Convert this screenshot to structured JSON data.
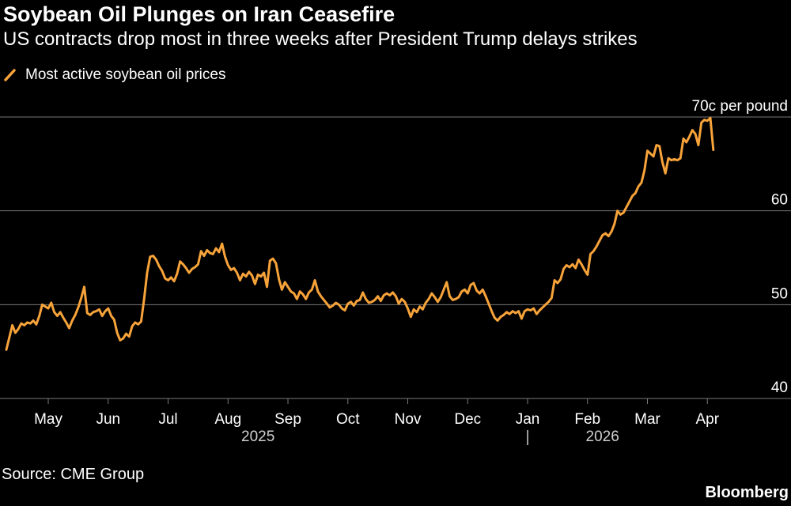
{
  "header": {
    "title": "Soybean Oil Plunges on Iran Ceasefire",
    "subtitle": "US contracts drop most in three weeks after President Trump delays strikes"
  },
  "legend": {
    "label": "Most active soybean oil prices"
  },
  "footer": {
    "source": "Source: CME Group",
    "brand": "Bloomberg"
  },
  "colors": {
    "background": "#000000",
    "line": "#f7a33a",
    "grid": "#7a7a7a",
    "text": "#ffffff",
    "year_text": "#cfcfcf"
  },
  "chart_data": {
    "type": "line",
    "title": "Soybean Oil Plunges on Iran Ceasefire",
    "series": [
      {
        "name": "Most active soybean oil prices",
        "unit": "cents per pound"
      }
    ],
    "ylim": [
      40,
      70
    ],
    "y_ticks": [
      {
        "value": 70,
        "label": "70c per pound"
      },
      {
        "value": 60,
        "label": "60"
      },
      {
        "value": 50,
        "label": "50"
      },
      {
        "value": 40,
        "label": "40"
      }
    ],
    "x_range": [
      0,
      12.7
    ],
    "month_ticks": [
      {
        "pos": 0.7,
        "label": "May"
      },
      {
        "pos": 1.7,
        "label": "Jun"
      },
      {
        "pos": 2.7,
        "label": "Jul"
      },
      {
        "pos": 3.7,
        "label": "Aug"
      },
      {
        "pos": 4.7,
        "label": "Sep"
      },
      {
        "pos": 5.7,
        "label": "Oct"
      },
      {
        "pos": 6.7,
        "label": "Nov"
      },
      {
        "pos": 7.7,
        "label": "Dec"
      },
      {
        "pos": 8.7,
        "label": "Jan"
      },
      {
        "pos": 9.7,
        "label": "Feb"
      },
      {
        "pos": 10.7,
        "label": "Mar"
      },
      {
        "pos": 11.7,
        "label": "Apr"
      }
    ],
    "year_labels": [
      {
        "pos": 4.2,
        "label": "2025"
      },
      {
        "pos": 9.95,
        "label": "2026"
      }
    ],
    "year_divider_pos": 8.7,
    "points": [
      [
        0.0,
        45.2
      ],
      [
        0.05,
        46.5
      ],
      [
        0.1,
        47.8
      ],
      [
        0.15,
        47.0
      ],
      [
        0.2,
        47.4
      ],
      [
        0.25,
        48.0
      ],
      [
        0.3,
        47.8
      ],
      [
        0.35,
        48.1
      ],
      [
        0.4,
        48.0
      ],
      [
        0.45,
        48.3
      ],
      [
        0.5,
        47.9
      ],
      [
        0.55,
        48.8
      ],
      [
        0.6,
        50.0
      ],
      [
        0.65,
        49.8
      ],
      [
        0.7,
        49.6
      ],
      [
        0.75,
        50.2
      ],
      [
        0.8,
        49.2
      ],
      [
        0.85,
        48.8
      ],
      [
        0.9,
        49.2
      ],
      [
        0.95,
        48.6
      ],
      [
        1.0,
        48.1
      ],
      [
        1.05,
        47.5
      ],
      [
        1.1,
        48.3
      ],
      [
        1.15,
        48.9
      ],
      [
        1.2,
        49.7
      ],
      [
        1.25,
        50.7
      ],
      [
        1.3,
        51.9
      ],
      [
        1.35,
        49.1
      ],
      [
        1.4,
        48.9
      ],
      [
        1.45,
        49.2
      ],
      [
        1.5,
        49.3
      ],
      [
        1.55,
        49.5
      ],
      [
        1.6,
        48.8
      ],
      [
        1.65,
        49.3
      ],
      [
        1.7,
        49.6
      ],
      [
        1.75,
        48.8
      ],
      [
        1.8,
        48.4
      ],
      [
        1.85,
        47.0
      ],
      [
        1.9,
        46.2
      ],
      [
        1.95,
        46.4
      ],
      [
        2.0,
        46.9
      ],
      [
        2.05,
        46.6
      ],
      [
        2.1,
        47.7
      ],
      [
        2.15,
        48.1
      ],
      [
        2.2,
        47.9
      ],
      [
        2.25,
        48.2
      ],
      [
        2.3,
        50.6
      ],
      [
        2.35,
        53.4
      ],
      [
        2.4,
        55.1
      ],
      [
        2.45,
        55.2
      ],
      [
        2.5,
        54.8
      ],
      [
        2.55,
        54.1
      ],
      [
        2.6,
        53.6
      ],
      [
        2.65,
        52.8
      ],
      [
        2.7,
        52.6
      ],
      [
        2.75,
        52.9
      ],
      [
        2.8,
        52.5
      ],
      [
        2.85,
        53.3
      ],
      [
        2.9,
        54.6
      ],
      [
        2.95,
        54.3
      ],
      [
        3.0,
        53.9
      ],
      [
        3.05,
        53.4
      ],
      [
        3.1,
        53.8
      ],
      [
        3.15,
        54.0
      ],
      [
        3.2,
        54.3
      ],
      [
        3.25,
        55.7
      ],
      [
        3.3,
        55.2
      ],
      [
        3.35,
        55.8
      ],
      [
        3.4,
        55.5
      ],
      [
        3.45,
        55.4
      ],
      [
        3.5,
        56.0
      ],
      [
        3.55,
        55.6
      ],
      [
        3.6,
        56.5
      ],
      [
        3.65,
        55.1
      ],
      [
        3.7,
        54.2
      ],
      [
        3.75,
        53.7
      ],
      [
        3.8,
        53.9
      ],
      [
        3.85,
        53.4
      ],
      [
        3.9,
        52.6
      ],
      [
        3.95,
        53.3
      ],
      [
        4.0,
        53.0
      ],
      [
        4.05,
        53.5
      ],
      [
        4.1,
        53.1
      ],
      [
        4.15,
        52.2
      ],
      [
        4.2,
        53.2
      ],
      [
        4.25,
        53.0
      ],
      [
        4.3,
        53.4
      ],
      [
        4.35,
        51.9
      ],
      [
        4.4,
        54.7
      ],
      [
        4.45,
        54.9
      ],
      [
        4.5,
        54.4
      ],
      [
        4.55,
        52.7
      ],
      [
        4.6,
        51.6
      ],
      [
        4.65,
        52.4
      ],
      [
        4.7,
        51.9
      ],
      [
        4.75,
        51.4
      ],
      [
        4.8,
        51.2
      ],
      [
        4.85,
        50.6
      ],
      [
        4.9,
        51.4
      ],
      [
        4.95,
        51.1
      ],
      [
        5.0,
        50.6
      ],
      [
        5.05,
        51.3
      ],
      [
        5.1,
        51.6
      ],
      [
        5.15,
        52.6
      ],
      [
        5.2,
        51.4
      ],
      [
        5.25,
        50.9
      ],
      [
        5.3,
        50.5
      ],
      [
        5.35,
        50.1
      ],
      [
        5.4,
        49.7
      ],
      [
        5.45,
        49.9
      ],
      [
        5.5,
        50.2
      ],
      [
        5.55,
        50.0
      ],
      [
        5.6,
        49.6
      ],
      [
        5.65,
        49.4
      ],
      [
        5.7,
        50.1
      ],
      [
        5.75,
        50.3
      ],
      [
        5.8,
        49.9
      ],
      [
        5.85,
        50.4
      ],
      [
        5.9,
        50.5
      ],
      [
        5.95,
        51.3
      ],
      [
        6.0,
        50.6
      ],
      [
        6.05,
        50.2
      ],
      [
        6.1,
        50.3
      ],
      [
        6.15,
        50.5
      ],
      [
        6.2,
        50.9
      ],
      [
        6.25,
        50.4
      ],
      [
        6.3,
        51.0
      ],
      [
        6.35,
        51.2
      ],
      [
        6.4,
        51.0
      ],
      [
        6.45,
        51.3
      ],
      [
        6.5,
        50.9
      ],
      [
        6.55,
        50.1
      ],
      [
        6.6,
        50.6
      ],
      [
        6.65,
        50.3
      ],
      [
        6.7,
        49.6
      ],
      [
        6.75,
        48.7
      ],
      [
        6.8,
        49.5
      ],
      [
        6.85,
        49.2
      ],
      [
        6.9,
        49.8
      ],
      [
        6.95,
        49.5
      ],
      [
        7.0,
        50.2
      ],
      [
        7.05,
        50.6
      ],
      [
        7.1,
        51.2
      ],
      [
        7.15,
        50.8
      ],
      [
        7.2,
        50.3
      ],
      [
        7.25,
        50.8
      ],
      [
        7.3,
        51.6
      ],
      [
        7.35,
        52.4
      ],
      [
        7.4,
        50.9
      ],
      [
        7.45,
        50.5
      ],
      [
        7.5,
        50.6
      ],
      [
        7.55,
        50.8
      ],
      [
        7.6,
        51.4
      ],
      [
        7.65,
        51.6
      ],
      [
        7.7,
        51.2
      ],
      [
        7.75,
        52.1
      ],
      [
        7.8,
        52.3
      ],
      [
        7.85,
        51.5
      ],
      [
        7.9,
        51.2
      ],
      [
        7.95,
        51.6
      ],
      [
        8.0,
        50.9
      ],
      [
        8.05,
        50.1
      ],
      [
        8.1,
        49.3
      ],
      [
        8.15,
        48.6
      ],
      [
        8.2,
        48.3
      ],
      [
        8.25,
        48.7
      ],
      [
        8.3,
        48.9
      ],
      [
        8.35,
        49.2
      ],
      [
        8.4,
        49.0
      ],
      [
        8.45,
        49.3
      ],
      [
        8.5,
        49.1
      ],
      [
        8.55,
        49.3
      ],
      [
        8.6,
        48.5
      ],
      [
        8.65,
        49.3
      ],
      [
        8.7,
        49.5
      ],
      [
        8.75,
        49.4
      ],
      [
        8.8,
        49.6
      ],
      [
        8.85,
        49.0
      ],
      [
        8.9,
        49.4
      ],
      [
        8.95,
        49.7
      ],
      [
        9.0,
        50.0
      ],
      [
        9.05,
        50.3
      ],
      [
        9.1,
        50.7
      ],
      [
        9.15,
        52.6
      ],
      [
        9.2,
        52.3
      ],
      [
        9.25,
        52.7
      ],
      [
        9.3,
        53.8
      ],
      [
        9.35,
        54.2
      ],
      [
        9.4,
        54.0
      ],
      [
        9.45,
        54.3
      ],
      [
        9.5,
        53.9
      ],
      [
        9.55,
        54.8
      ],
      [
        9.6,
        54.3
      ],
      [
        9.65,
        53.7
      ],
      [
        9.7,
        53.2
      ],
      [
        9.75,
        55.4
      ],
      [
        9.8,
        55.7
      ],
      [
        9.85,
        56.2
      ],
      [
        9.9,
        56.8
      ],
      [
        9.95,
        57.4
      ],
      [
        10.0,
        57.6
      ],
      [
        10.05,
        57.3
      ],
      [
        10.1,
        57.8
      ],
      [
        10.15,
        58.6
      ],
      [
        10.2,
        60.0
      ],
      [
        10.25,
        59.6
      ],
      [
        10.3,
        59.8
      ],
      [
        10.35,
        60.4
      ],
      [
        10.4,
        61.0
      ],
      [
        10.45,
        61.6
      ],
      [
        10.5,
        61.9
      ],
      [
        10.55,
        62.6
      ],
      [
        10.6,
        63.0
      ],
      [
        10.65,
        64.3
      ],
      [
        10.7,
        66.4
      ],
      [
        10.75,
        66.1
      ],
      [
        10.8,
        65.8
      ],
      [
        10.85,
        67.0
      ],
      [
        10.9,
        66.9
      ],
      [
        10.95,
        65.2
      ],
      [
        11.0,
        64.0
      ],
      [
        11.05,
        65.6
      ],
      [
        11.1,
        65.4
      ],
      [
        11.15,
        65.5
      ],
      [
        11.2,
        65.4
      ],
      [
        11.25,
        65.6
      ],
      [
        11.3,
        67.7
      ],
      [
        11.35,
        67.3
      ],
      [
        11.4,
        67.9
      ],
      [
        11.45,
        68.6
      ],
      [
        11.5,
        68.2
      ],
      [
        11.55,
        67.0
      ],
      [
        11.6,
        69.4
      ],
      [
        11.65,
        69.7
      ],
      [
        11.7,
        69.6
      ],
      [
        11.75,
        69.9
      ],
      [
        11.8,
        66.5
      ]
    ]
  }
}
